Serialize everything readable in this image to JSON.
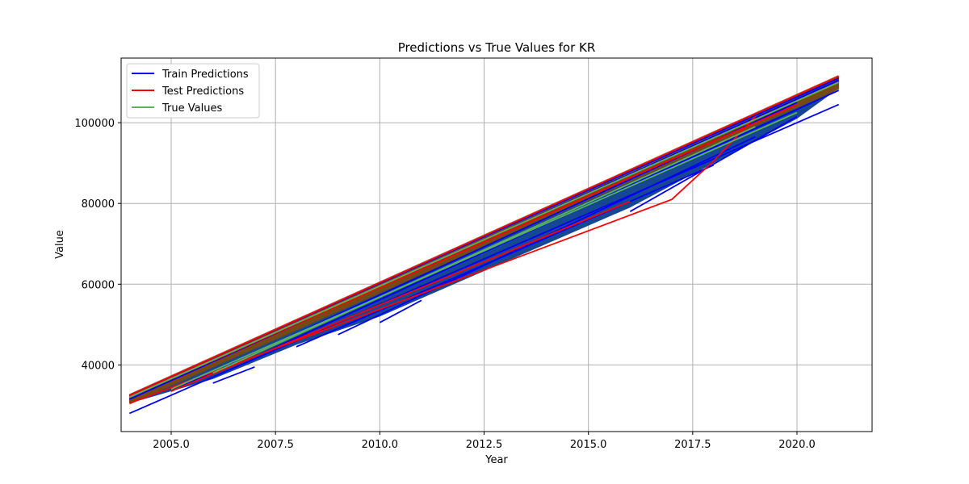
{
  "chart_data": {
    "type": "line",
    "title": "Predictions vs True Values for KR",
    "xlabel": "Year",
    "ylabel": "Value",
    "xlim": [
      2003.8,
      2021.8
    ],
    "ylim": [
      23500,
      116000
    ],
    "x_ticks": [
      2005.0,
      2007.5,
      2010.0,
      2012.5,
      2015.0,
      2017.5,
      2020.0
    ],
    "x_tick_labels": [
      "2005.0",
      "2007.5",
      "2010.0",
      "2012.5",
      "2015.0",
      "2017.5",
      "2020.0"
    ],
    "y_ticks": [
      40000,
      60000,
      80000,
      100000
    ],
    "y_tick_labels": [
      "40000",
      "60000",
      "80000",
      "100000"
    ],
    "grid": true,
    "legend_position": "top-left",
    "series": [
      {
        "name": "Train Predictions",
        "color": "#0000ff",
        "segments": [
          [
            [
              2004,
              28000
            ],
            [
              2021,
              104500
            ]
          ],
          [
            [
              2004,
              31500
            ],
            [
              2021,
              110500
            ]
          ],
          [
            [
              2004,
              32500
            ],
            [
              2021,
              111000
            ]
          ],
          [
            [
              2006,
              35500
            ],
            [
              2007,
              39500
            ]
          ],
          [
            [
              2008,
              44500
            ],
            [
              2018,
              89500
            ]
          ],
          [
            [
              2009,
              47500
            ],
            [
              2019,
              96500
            ]
          ],
          [
            [
              2010,
              50500
            ],
            [
              2011,
              56000
            ]
          ],
          [
            [
              2016,
              78000
            ],
            [
              2020,
              101500
            ]
          ],
          [
            [
              2005,
              33500
            ],
            [
              2020,
              105000
            ]
          ],
          [
            [
              2007,
              42000
            ],
            [
              2021,
              108000
            ]
          ]
        ]
      },
      {
        "name": "Test Predictions",
        "color": "#ff0000",
        "segments": [
          [
            [
              2004,
              30500
            ],
            [
              2017,
              81000
            ],
            [
              2018,
              90500
            ],
            [
              2019,
              101500
            ]
          ],
          [
            [
              2004,
              32500
            ],
            [
              2021,
              111500
            ]
          ],
          [
            [
              2004,
              32000
            ],
            [
              2020,
              104500
            ]
          ],
          [
            [
              2005,
              33500
            ],
            [
              2016,
              80500
            ]
          ]
        ]
      },
      {
        "name": "True Values",
        "color": "#5ab45a",
        "segments": [
          [
            [
              2004,
              32000
            ],
            [
              2021,
              110000
            ]
          ],
          [
            [
              2005,
              34000
            ],
            [
              2020,
              102500
            ]
          ],
          [
            [
              2006,
              38000
            ],
            [
              2019,
              99000
            ]
          ]
        ]
      }
    ],
    "overlay_band": {
      "color_blue": "#0a3d8c",
      "color_brown": "#7a4a10",
      "upper": [
        [
          2004,
          32500
        ],
        [
          2021,
          111500
        ]
      ],
      "lower": [
        [
          2004,
          30500
        ],
        [
          2006,
          36500
        ],
        [
          2008,
          45000
        ],
        [
          2010,
          52000
        ],
        [
          2012,
          61000
        ],
        [
          2014,
          70000
        ],
        [
          2016,
          79000
        ],
        [
          2018,
          90000
        ],
        [
          2020,
          101000
        ],
        [
          2021,
          108500
        ]
      ]
    }
  }
}
